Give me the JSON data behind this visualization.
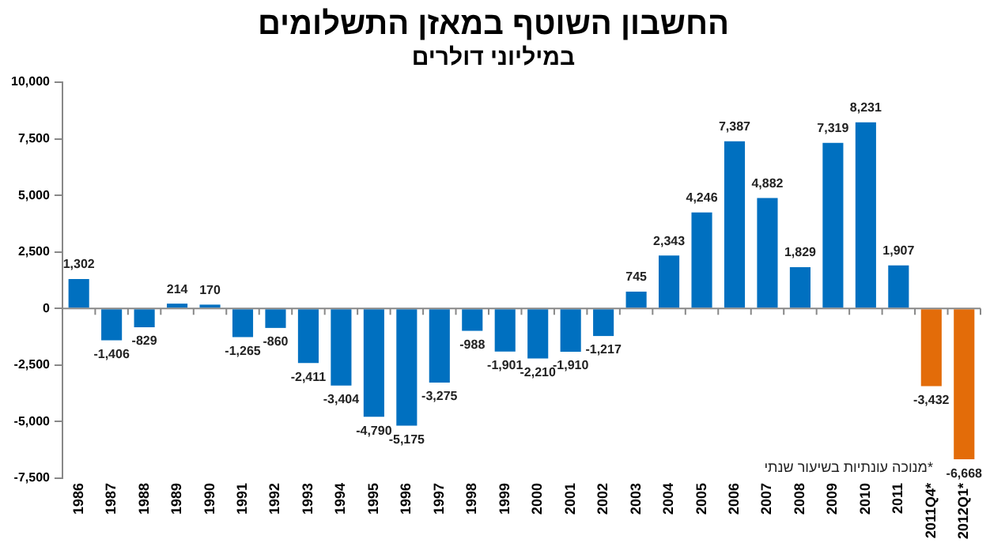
{
  "chart_data": {
    "type": "bar",
    "title": "החשבון השוטף במאזן התשלומים",
    "subtitle": "במיליוני דולרים",
    "categories": [
      "1986",
      "1987",
      "1988",
      "1989",
      "1990",
      "1991",
      "1992",
      "1993",
      "1994",
      "1995",
      "1996",
      "1997",
      "1998",
      "1999",
      "2000",
      "2001",
      "2002",
      "2003",
      "2004",
      "2005",
      "2006",
      "2007",
      "2008",
      "2009",
      "2010",
      "2011",
      "2011Q4*",
      "2012Q1*"
    ],
    "values": [
      1302,
      -1406,
      -829,
      214,
      170,
      -1265,
      -860,
      -2411,
      -3404,
      -4790,
      -5175,
      -3275,
      -988,
      -1901,
      -2210,
      -1910,
      -1217,
      745,
      2343,
      4246,
      7387,
      4882,
      1829,
      7319,
      8231,
      1907,
      -3432,
      -6668
    ],
    "value_labels": [
      "1,302",
      "-1,406",
      "-829",
      "214",
      "170",
      "-1,265",
      "-860",
      "-2,411",
      "-3,404",
      "-4,790",
      "-5,175",
      "-3,275",
      "-988",
      "-1,901",
      "-2,210",
      "-1,910",
      "-1,217",
      "745",
      "2,343",
      "4,246",
      "7,387",
      "4,882",
      "1,829",
      "7,319",
      "8,231",
      "1,907",
      "-3,432",
      "-6,668"
    ],
    "colors": [
      "#0070c0",
      "#0070c0",
      "#0070c0",
      "#0070c0",
      "#0070c0",
      "#0070c0",
      "#0070c0",
      "#0070c0",
      "#0070c0",
      "#0070c0",
      "#0070c0",
      "#0070c0",
      "#0070c0",
      "#0070c0",
      "#0070c0",
      "#0070c0",
      "#0070c0",
      "#0070c0",
      "#0070c0",
      "#0070c0",
      "#0070c0",
      "#0070c0",
      "#0070c0",
      "#0070c0",
      "#0070c0",
      "#0070c0",
      "#e36c09",
      "#e36c09"
    ],
    "ylim": [
      -7500,
      10000
    ],
    "yticks": [
      {
        "value": -7500,
        "label": "-7,500"
      },
      {
        "value": -5000,
        "label": "-5,000"
      },
      {
        "value": -2500,
        "label": "-2,500"
      },
      0,
      {
        "value": 2500,
        "label": "2,500"
      },
      {
        "value": 5000,
        "label": "5,000"
      },
      {
        "value": 7500,
        "label": "7,500"
      },
      {
        "value": 10000,
        "label": "10,000"
      }
    ],
    "annotations": [
      "*מנוכה עונתיות בשיעור שנתי"
    ]
  }
}
